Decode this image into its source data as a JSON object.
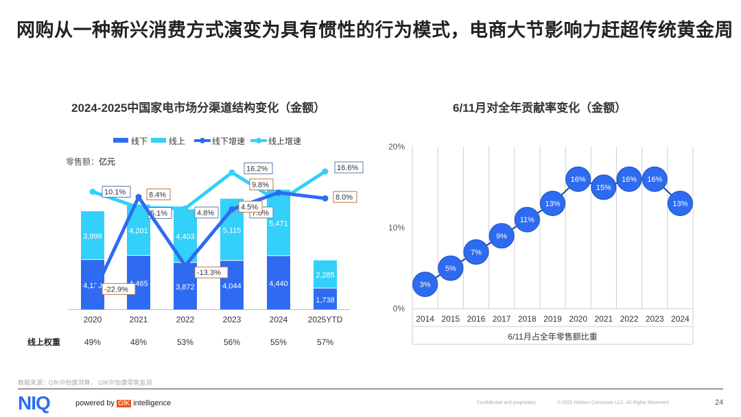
{
  "title": "网购从一种新兴消费方式演变为具有惯性的行为模式，电商大节影响力赶超传统黄金周",
  "chart_data": [
    {
      "type": "bar",
      "title": "2024-2025中国家电市场分渠道结构变化（金额）",
      "unit_label": "零售额：",
      "unit": "亿元",
      "stacked": true,
      "categories": [
        "2020",
        "2021",
        "2022",
        "2023",
        "2024",
        "2025YTD"
      ],
      "series": [
        {
          "name": "线下",
          "type": "bar",
          "color": "#2e6bf0",
          "values": [
            4120,
            4465,
            3872,
            4044,
            4440,
            1738
          ]
        },
        {
          "name": "线上",
          "type": "bar",
          "color": "#33d0fa",
          "values": [
            3998,
            4201,
            4403,
            5115,
            5471,
            2285
          ]
        },
        {
          "name": "线下增速",
          "type": "line",
          "color": "#2e6bf0",
          "values": [
            -22.9,
            8.4,
            -13.3,
            4.5,
            9.8,
            8.0
          ],
          "labels": [
            "-22.9%",
            "8.4%",
            "-13.3%",
            "4.5%",
            "9.8%",
            "8.0%"
          ]
        },
        {
          "name": "线上增速",
          "type": "line",
          "color": "#33d0fa",
          "values": [
            10.1,
            5.1,
            4.8,
            16.2,
            7.0,
            16.6
          ],
          "labels": [
            "10.1%",
            "5.1%",
            "4.8%",
            "16.2%",
            "7.0%",
            "16.6%"
          ]
        }
      ],
      "legend": "top",
      "share_row_label": "线上权重",
      "share_row": [
        "49%",
        "48%",
        "53%",
        "56%",
        "55%",
        "57%"
      ]
    },
    {
      "type": "line",
      "title": "6/11月对全年贡献率变化（金额）",
      "xlabel": "6/11月占全年零售额比重",
      "categories": [
        "2014",
        "2015",
        "2016",
        "2017",
        "2018",
        "2019",
        "2020",
        "2021",
        "2022",
        "2023",
        "2024"
      ],
      "values": [
        3,
        5,
        7,
        9,
        11,
        13,
        16,
        15,
        16,
        16,
        13
      ],
      "labels": [
        "3%",
        "5%",
        "7%",
        "9%",
        "11%",
        "13%",
        "16%",
        "15%",
        "16%",
        "16%",
        "13%"
      ],
      "yticks": [
        "0%",
        "10%",
        "20%"
      ],
      "ylim": [
        0,
        20
      ],
      "grid": true,
      "color": "#2e6bf0"
    }
  ],
  "footer": {
    "source": "数据来源：GfK中怡康测算， GfK中怡康零售监测",
    "logo": "NIQ",
    "powered": "powered by",
    "gfk": "GfK",
    "intel": "intelligence",
    "confidential": "Confidential and proprietary",
    "copyright": "© 2025 Nielsen Consumer LLC. All Rights Reserved.",
    "page": "24"
  }
}
